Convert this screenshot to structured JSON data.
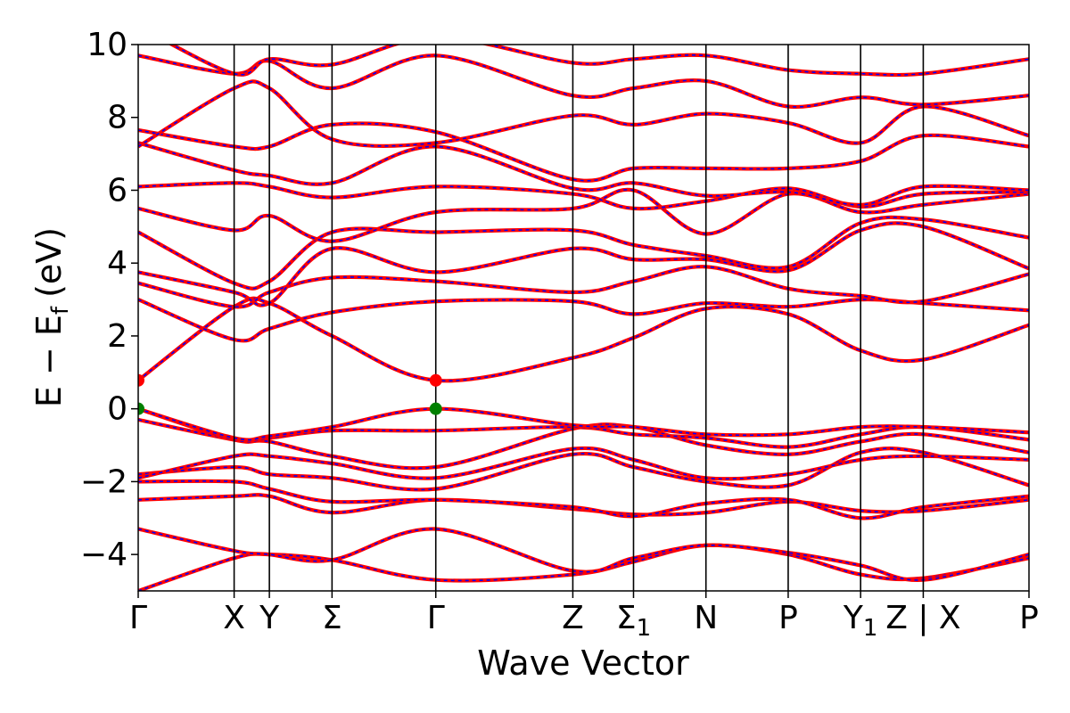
{
  "chart_data": {
    "type": "line",
    "xlabel": "Wave Vector",
    "ylabel_text": "E − E",
    "ylabel_sub": "f",
    "ylabel_unit": "(eV)",
    "ylim": [
      -5,
      10
    ],
    "yticks": [
      {
        "value": -4,
        "label": "−4"
      },
      {
        "value": -2,
        "label": "−2"
      },
      {
        "value": 0,
        "label": "0"
      },
      {
        "value": 2,
        "label": "2"
      },
      {
        "value": 4,
        "label": "4"
      },
      {
        "value": 6,
        "label": "6"
      },
      {
        "value": 8,
        "label": "8"
      },
      {
        "value": 10,
        "label": "10"
      }
    ],
    "xlim": [
      0,
      9.1
    ],
    "kpoints": [
      {
        "x": 0.0,
        "label": "Γ",
        "sub": ""
      },
      {
        "x": 0.98,
        "label": "X",
        "sub": ""
      },
      {
        "x": 1.34,
        "label": "Y",
        "sub": ""
      },
      {
        "x": 1.98,
        "label": "Σ",
        "sub": ""
      },
      {
        "x": 3.04,
        "label": "Γ",
        "sub": ""
      },
      {
        "x": 4.44,
        "label": "Z",
        "sub": ""
      },
      {
        "x": 5.06,
        "label": "Σ",
        "sub": "1"
      },
      {
        "x": 5.8,
        "label": "N",
        "sub": ""
      },
      {
        "x": 6.64,
        "label": "P",
        "sub": ""
      },
      {
        "x": 7.38,
        "label": "Y",
        "sub": "1"
      },
      {
        "x": 8.02,
        "label": "Z | X",
        "sub": ""
      },
      {
        "x": 9.1,
        "label": "P",
        "sub": ""
      }
    ],
    "markers": [
      {
        "name": "cbm-marker-1",
        "x": 0.0,
        "y": 0.78,
        "color": "#ff0000"
      },
      {
        "name": "cbm-marker-2",
        "x": 3.04,
        "y": 0.78,
        "color": "#ff0000"
      },
      {
        "name": "vbm-marker-1",
        "x": 0.0,
        "y": 0.0,
        "color": "#008000"
      },
      {
        "name": "vbm-marker-2",
        "x": 3.04,
        "y": 0.0,
        "color": "#008000"
      }
    ],
    "bands": [
      [
        -5.0,
        -4.1,
        -4.0,
        -4.15,
        -4.7,
        -4.55,
        -4.2,
        -3.75,
        -4.0,
        -4.55,
        -4.65,
        -4.1
      ],
      [
        -3.3,
        -3.9,
        -4.0,
        -4.15,
        -3.3,
        -4.45,
        -4.1,
        -3.75,
        -3.95,
        -4.3,
        -4.7,
        -4.0
      ],
      [
        -2.5,
        -2.4,
        -2.4,
        -2.85,
        -2.5,
        -2.75,
        -2.9,
        -2.85,
        -2.55,
        -2.8,
        -2.8,
        -2.5
      ],
      [
        -2.0,
        -2.0,
        -2.2,
        -2.55,
        -2.5,
        -2.7,
        -2.95,
        -2.6,
        -2.5,
        -3.0,
        -2.7,
        -2.4
      ],
      [
        -1.8,
        -1.6,
        -1.8,
        -1.9,
        -2.2,
        -1.25,
        -1.6,
        -2.0,
        -2.1,
        -1.2,
        -1.2,
        -2.1
      ],
      [
        -1.9,
        -1.3,
        -1.3,
        -1.5,
        -1.9,
        -1.1,
        -1.4,
        -1.9,
        -1.8,
        -1.4,
        -1.3,
        -1.4
      ],
      [
        -0.3,
        -0.85,
        -0.9,
        -1.3,
        -1.6,
        -0.55,
        -0.5,
        -1.0,
        -1.25,
        -0.9,
        -0.7,
        -1.2
      ],
      [
        0.0,
        -0.85,
        -0.8,
        -0.6,
        -0.6,
        -0.5,
        -0.7,
        -0.8,
        -1.05,
        -0.7,
        -0.5,
        -0.85
      ],
      [
        0.0,
        -0.8,
        -0.75,
        -0.5,
        0.0,
        -0.45,
        -0.5,
        -0.7,
        -0.7,
        -0.5,
        -0.5,
        -0.65
      ],
      [
        0.78,
        2.8,
        2.9,
        2.0,
        0.78,
        1.4,
        1.95,
        2.75,
        2.6,
        1.6,
        1.35,
        2.3
      ],
      [
        3.0,
        1.9,
        2.2,
        2.65,
        2.95,
        2.95,
        2.6,
        2.9,
        2.8,
        3.0,
        2.9,
        2.7
      ],
      [
        3.45,
        2.8,
        3.2,
        3.6,
        3.5,
        3.2,
        3.5,
        3.9,
        3.3,
        3.1,
        2.95,
        3.7
      ],
      [
        3.75,
        3.2,
        2.9,
        4.4,
        3.75,
        4.4,
        4.1,
        4.1,
        3.8,
        4.9,
        5.0,
        3.85
      ],
      [
        4.85,
        3.45,
        3.5,
        4.85,
        4.85,
        4.9,
        4.5,
        4.2,
        3.9,
        5.1,
        5.2,
        4.7
      ],
      [
        5.5,
        4.9,
        5.3,
        4.6,
        5.4,
        5.5,
        6.0,
        4.8,
        5.9,
        5.4,
        5.6,
        5.9
      ],
      [
        6.1,
        6.2,
        6.1,
        5.8,
        6.1,
        5.9,
        5.5,
        5.7,
        6.05,
        5.55,
        5.9,
        5.95
      ],
      [
        7.3,
        6.55,
        6.4,
        6.2,
        7.2,
        6.05,
        6.2,
        5.85,
        5.95,
        5.6,
        6.1,
        6.0
      ],
      [
        7.65,
        7.2,
        7.2,
        7.8,
        7.6,
        6.3,
        6.6,
        6.6,
        6.6,
        6.8,
        7.5,
        7.2
      ],
      [
        7.2,
        8.8,
        8.8,
        7.4,
        7.3,
        8.05,
        7.8,
        8.1,
        7.85,
        7.3,
        8.3,
        7.5
      ],
      [
        9.7,
        9.2,
        9.55,
        8.8,
        9.7,
        8.6,
        8.8,
        9.0,
        8.3,
        8.55,
        8.35,
        8.6
      ],
      [
        10.5,
        9.2,
        9.6,
        9.45,
        10.2,
        9.5,
        9.6,
        9.7,
        9.3,
        9.2,
        9.2,
        9.6
      ]
    ],
    "line_color": "#ff0000",
    "dash_color": "#0000ff",
    "grid": false
  }
}
